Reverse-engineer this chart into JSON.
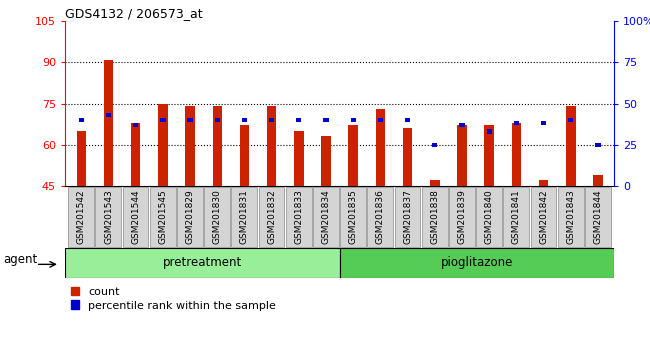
{
  "title": "GDS4132 / 206573_at",
  "samples": [
    "GSM201542",
    "GSM201543",
    "GSM201544",
    "GSM201545",
    "GSM201829",
    "GSM201830",
    "GSM201831",
    "GSM201832",
    "GSM201833",
    "GSM201834",
    "GSM201835",
    "GSM201836",
    "GSM201837",
    "GSM201838",
    "GSM201839",
    "GSM201840",
    "GSM201841",
    "GSM201842",
    "GSM201843",
    "GSM201844"
  ],
  "red_values": [
    65,
    91,
    68,
    75,
    74,
    74,
    67,
    74,
    65,
    63,
    67,
    73,
    66,
    47,
    67,
    67,
    68,
    47,
    74,
    49
  ],
  "blue_percentiles": [
    40,
    43,
    37,
    40,
    40,
    40,
    40,
    40,
    40,
    40,
    40,
    40,
    40,
    25,
    37,
    33,
    38,
    38,
    40,
    25
  ],
  "pretreatment_count": 10,
  "ylim_left": [
    45,
    105
  ],
  "ylim_right": [
    0,
    100
  ],
  "yticks_left": [
    45,
    60,
    75,
    90,
    105
  ],
  "yticks_right": [
    0,
    25,
    50,
    75,
    100
  ],
  "ytick_labels_right": [
    "0",
    "25",
    "50",
    "75",
    "100%"
  ],
  "grid_values": [
    60,
    75,
    90
  ],
  "bar_color": "#cc2200",
  "blue_color": "#0000cc",
  "pretreatment_color": "#99ee99",
  "pioglitazone_color": "#55cc55",
  "xticklabel_bg": "#d0d0d0",
  "agent_label": "agent",
  "pretreatment_label": "pretreatment",
  "pioglitazone_label": "pioglitazone",
  "legend_count": "count",
  "legend_percentile": "percentile rank within the sample",
  "bar_width": 0.35
}
